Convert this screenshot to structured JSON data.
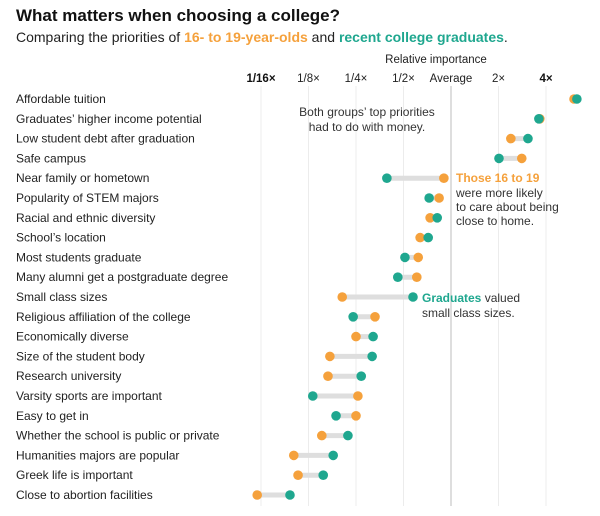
{
  "title": "What matters when choosing a college?",
  "subtitle": {
    "prefix": "Comparing the priorities of ",
    "group_young": "16- to 19-year-olds",
    "middle": " and ",
    "group_grad": "recent college graduates",
    "suffix": "."
  },
  "colors": {
    "young": "#f5a13c",
    "grad": "#1fa78f",
    "connector": "#dedede",
    "grid": "#ececec",
    "average": "#bdbdbd"
  },
  "chart_data": {
    "type": "dot-plot",
    "title": "What matters when choosing a college?",
    "xlabel": "Relative importance",
    "x_scale": "log2",
    "x_ticks": [
      {
        "label": "1/16×",
        "log2": -4,
        "bold": true
      },
      {
        "label": "1/8×",
        "log2": -3
      },
      {
        "label": "1/4×",
        "log2": -2
      },
      {
        "label": "1/2×",
        "log2": -1
      },
      {
        "label": "Average",
        "log2": 0
      },
      {
        "label": "2×",
        "log2": 1
      },
      {
        "label": "4×",
        "log2": 2,
        "bold": true
      }
    ],
    "series": [
      {
        "name": "16- to 19-year-olds",
        "color_key": "young"
      },
      {
        "name": "Recent college graduates",
        "color_key": "grad"
      }
    ],
    "categories": [
      "Affordable tuition",
      "Graduates’ higher income potential",
      "Low student debt after graduation",
      "Safe campus",
      "Near family or hometown",
      "Popularity of STEM majors",
      "Racial and ethnic diversity",
      "School’s location",
      "Most students graduate",
      "Many alumni get a postgraduate degree",
      "Small class sizes",
      "Religious affiliation of the college",
      "Economically diverse",
      "Size of the student body",
      "Research university",
      "Varsity sports are important",
      "Easy to get in",
      "Whether the school is public or private",
      "Humanities majors are popular",
      "Greek life is important",
      "Close to abortion facilities"
    ],
    "young_log2": [
      2.59,
      1.87,
      1.26,
      1.49,
      -0.15,
      -0.25,
      -0.44,
      -0.65,
      -0.69,
      -0.72,
      -2.29,
      -1.6,
      -2.0,
      -2.55,
      -2.59,
      -1.96,
      -2.0,
      -2.72,
      -3.31,
      -3.22,
      -4.08
    ],
    "grad_log2": [
      2.65,
      1.85,
      1.62,
      1.01,
      -1.35,
      -0.46,
      -0.29,
      -0.48,
      -0.97,
      -1.12,
      -0.8,
      -2.06,
      -1.64,
      -1.66,
      -1.89,
      -2.91,
      -2.42,
      -2.17,
      -2.48,
      -2.69,
      -3.39
    ],
    "annotations": {
      "money": [
        "Both groups’ top priorities",
        "had to do with money."
      ],
      "home": {
        "highlight": "Those 16 to 19",
        "lines": [
          "were more likely",
          "to care about being",
          "close to home."
        ]
      },
      "class": {
        "highlight": "Graduates",
        "rest": " valued",
        "line2": "small class sizes."
      }
    }
  }
}
